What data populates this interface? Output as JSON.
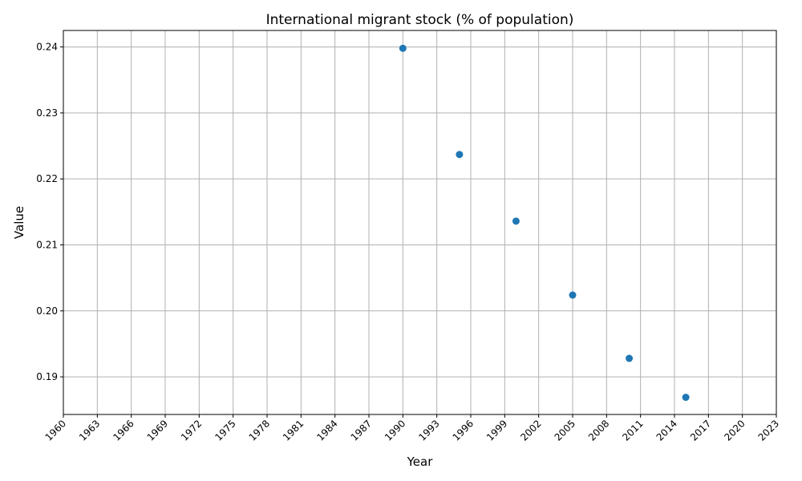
{
  "chart_data": {
    "type": "scatter",
    "title": "International migrant stock (% of population)",
    "xlabel": "Year",
    "ylabel": "Value",
    "xlim": [
      1960,
      2023
    ],
    "ylim": [
      0.1843,
      0.2425
    ],
    "x_ticks": [
      1960,
      1963,
      1966,
      1969,
      1972,
      1975,
      1978,
      1981,
      1984,
      1987,
      1990,
      1993,
      1996,
      1999,
      2002,
      2005,
      2008,
      2011,
      2014,
      2017,
      2020,
      2023
    ],
    "y_ticks": [
      "0.19",
      "0.20",
      "0.21",
      "0.22",
      "0.23",
      "0.24"
    ],
    "x_tick_rotation": 45,
    "grid": true,
    "marker_color": "#1f77b4",
    "series": [
      {
        "x": [
          1990,
          1995,
          2000,
          2005,
          2010,
          2015
        ],
        "values": [
          0.2398,
          0.2237,
          0.2136,
          0.2024,
          0.1928,
          0.1869
        ]
      }
    ]
  }
}
